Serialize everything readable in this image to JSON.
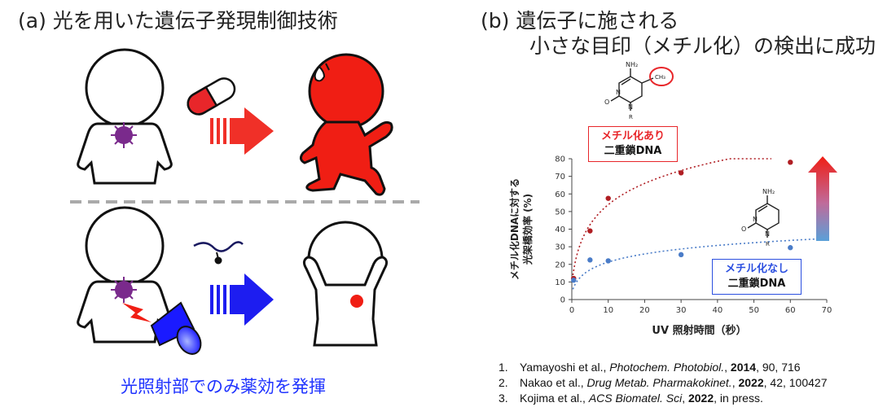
{
  "panel_a": {
    "title": "(a) 光を用いた遺伝子発現制御技術",
    "caption": "光照射部でのみ薬効を発揮"
  },
  "panel_b": {
    "title_line1": "(b) 遺伝子に施される",
    "title_line2": "小さな目印（メチル化）の検出に成功",
    "molecule_top": {
      "nh2": "NH₂",
      "ch3": "CH₃",
      "n": "N",
      "o": "O",
      "r": "R"
    },
    "molecule_mid": {
      "nh2": "NH₂",
      "n": "N",
      "o": "O",
      "r": "R"
    },
    "box_methyl": {
      "line1": "メチル化あり",
      "line2": "二重鎖DNA",
      "color": "#e8262a"
    },
    "box_unmethyl": {
      "line1": "メチル化なし",
      "line2": "二重鎖DNA",
      "color": "#2b4fe0"
    }
  },
  "chart_data": {
    "type": "scatter",
    "xlabel": "UV 照射時間（秒）",
    "ylabel_line1": "メチル化DNAに対する",
    "ylabel_line2": "光架橋効率 (%)",
    "xlim": [
      0,
      70
    ],
    "ylim": [
      0,
      80
    ],
    "xticks": [
      0,
      10,
      20,
      30,
      40,
      50,
      60,
      70
    ],
    "yticks": [
      0,
      10,
      20,
      30,
      40,
      50,
      60,
      70,
      80
    ],
    "series": [
      {
        "name": "メチル化あり",
        "color": "#b01e23",
        "x": [
          0.5,
          5,
          10,
          30,
          60
        ],
        "y": [
          12,
          39,
          57.5,
          72,
          78
        ]
      },
      {
        "name": "メチル化なし",
        "color": "#4a7cc8",
        "x": [
          0.5,
          5,
          10,
          30,
          60
        ],
        "y": [
          11,
          22.5,
          22,
          25.5,
          29.5
        ]
      }
    ]
  },
  "references": [
    {
      "num": "1.",
      "authors": "Yamayoshi et al., ",
      "journal": "Photochem. Photobiol.",
      "year": "2014",
      "rest": ", 90, 716"
    },
    {
      "num": "2.",
      "authors": "Nakao et al., ",
      "journal": "Drug Metab. Pharmakokinet.",
      "year": "2022",
      "rest": ", 42, 100427"
    },
    {
      "num": "3.",
      "authors": "Kojima et al., ",
      "journal": "ACS Biomatel. Sci",
      "year": "2022",
      "rest": ", in press."
    }
  ]
}
